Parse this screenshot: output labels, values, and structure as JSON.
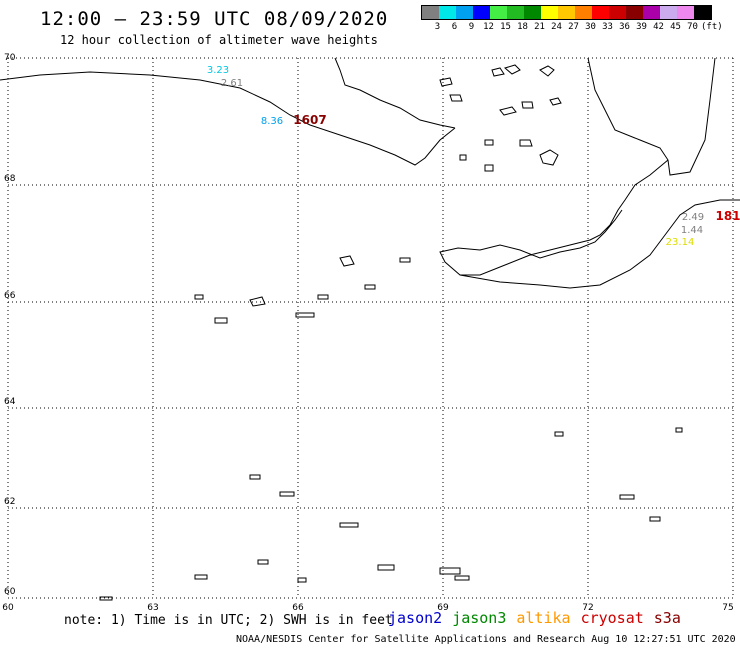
{
  "header": {
    "title": "12:00 — 23:59 UTC 08/09/2020",
    "subtitle": "12 hour collection of altimeter wave heights"
  },
  "legend": {
    "colors": [
      "#808080",
      "#00e8e8",
      "#00a0f0",
      "#0000ff",
      "#44ee44",
      "#22bb22",
      "#008800",
      "#ffff00",
      "#ffc800",
      "#ff8000",
      "#ff0000",
      "#cc0000",
      "#880000",
      "#aa00aa",
      "#ccaaee",
      "#ee88ee",
      "#000000"
    ],
    "labels": [
      "3",
      "6",
      "9",
      "12",
      "15",
      "18",
      "21",
      "24",
      "27",
      "30",
      "33",
      "36",
      "39",
      "42",
      "45",
      "70",
      "(ft)"
    ]
  },
  "map": {
    "lat_labels": [
      "70",
      "68",
      "66",
      "64",
      "62",
      "60"
    ],
    "lon_labels": [
      "60",
      "63",
      "66",
      "69",
      "72",
      "75"
    ],
    "observations": [
      {
        "value": "3.23",
        "color": "#00c8e0"
      },
      {
        "value": "2.61",
        "color": "#808080"
      },
      {
        "value": "8.36",
        "color": "#00a0f0"
      },
      {
        "value": "1607",
        "color": "#880000"
      },
      {
        "value": "2.49",
        "color": "#808080"
      },
      {
        "value": "181",
        "color": "#cc0000"
      },
      {
        "value": "1.44",
        "color": "#808080"
      },
      {
        "value": "23.14",
        "color": "#dddd00"
      }
    ]
  },
  "footer": {
    "note": "note: 1) Time is in UTC; 2) SWH is in feet",
    "satellites": [
      {
        "name": "jason2",
        "color": "#0000cc"
      },
      {
        "name": "jason3",
        "color": "#008800"
      },
      {
        "name": "altika",
        "color": "#ff9900"
      },
      {
        "name": "cryosat",
        "color": "#cc0000"
      },
      {
        "name": "s3a",
        "color": "#880000"
      }
    ],
    "credit": "NOAA/NESDIS Center for Satellite Applications and Research    Aug 10 12:27:51 UTC 2020"
  }
}
